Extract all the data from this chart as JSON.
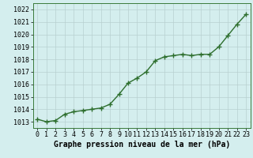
{
  "x": [
    0,
    1,
    2,
    3,
    4,
    5,
    6,
    7,
    8,
    9,
    10,
    11,
    12,
    13,
    14,
    15,
    16,
    17,
    18,
    19,
    20,
    21,
    22,
    23
  ],
  "y": [
    1013.2,
    1013.0,
    1013.1,
    1013.6,
    1013.8,
    1013.9,
    1014.0,
    1014.1,
    1014.4,
    1015.2,
    1016.1,
    1016.5,
    1017.0,
    1017.9,
    1018.2,
    1018.3,
    1018.4,
    1018.3,
    1018.4,
    1018.4,
    1019.0,
    1019.9,
    1020.8,
    1021.6
  ],
  "ylim": [
    1012.5,
    1022.5
  ],
  "yticks": [
    1013,
    1014,
    1015,
    1016,
    1017,
    1018,
    1019,
    1020,
    1021,
    1022
  ],
  "xticks": [
    0,
    1,
    2,
    3,
    4,
    5,
    6,
    7,
    8,
    9,
    10,
    11,
    12,
    13,
    14,
    15,
    16,
    17,
    18,
    19,
    20,
    21,
    22,
    23
  ],
  "line_color": "#2d6e2d",
  "marker": "+",
  "marker_size": 4,
  "line_width": 1.0,
  "background_color": "#d4eeee",
  "grid_color": "#b8d0d0",
  "xlabel": "Graphe pression niveau de la mer (hPa)",
  "xlabel_fontsize": 7,
  "tick_fontsize": 6,
  "xlim": [
    -0.5,
    23.5
  ]
}
